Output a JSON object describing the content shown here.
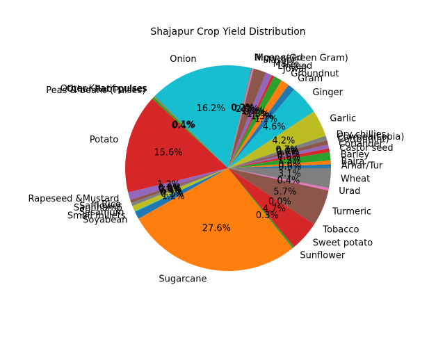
{
  "chart_data": {
    "type": "pie",
    "title": "Shajapur Crop Yield Distribution",
    "start_angle_deg": 0,
    "direction": "counterclockwise",
    "slices": [
      {
        "label": "Arhar/Tur",
        "value": 0.6,
        "pct_label": "0.6%",
        "color": "#1f77b4"
      },
      {
        "label": "Bajra",
        "value": 0.6,
        "pct_label": "0.6%",
        "color": "#ff7f0e"
      },
      {
        "label": "Barley",
        "value": 1.3,
        "pct_label": "1.3%",
        "color": "#2ca02c"
      },
      {
        "label": "Castor seed",
        "value": 0.6,
        "pct_label": "0.6%",
        "color": "#d62728"
      },
      {
        "label": "Coriander",
        "value": 0.6,
        "pct_label": "0.6%",
        "color": "#9467bd"
      },
      {
        "label": "Cotton(lint)",
        "value": 0.7,
        "pct_label": "0.7%",
        "color": "#8c564b"
      },
      {
        "label": "Cowpea(Lobia)",
        "value": 0.0,
        "pct_label": "0.0%",
        "color": "#e377c2"
      },
      {
        "label": "Dry chillies",
        "value": 0.7,
        "pct_label": "0.7%",
        "color": "#7f7f7f"
      },
      {
        "label": "Garlic",
        "value": 4.2,
        "pct_label": "4.2%",
        "color": "#bcbd22"
      },
      {
        "label": "Ginger",
        "value": 4.6,
        "pct_label": "4.6%",
        "color": "#17becf"
      },
      {
        "label": "Gram",
        "value": 1.1,
        "pct_label": "1.1%",
        "color": "#1f77b4"
      },
      {
        "label": "Groundnut",
        "value": 1.3,
        "pct_label": "1.3%",
        "color": "#ff7f0e"
      },
      {
        "label": "Jowar",
        "value": 1.3,
        "pct_label": "1.3%",
        "color": "#2ca02c"
      },
      {
        "label": "Linseed",
        "value": 0.4,
        "pct_label": "0.4%",
        "color": "#d62728"
      },
      {
        "label": "Maize",
        "value": 1.0,
        "pct_label": "1.0%",
        "color": "#9467bd"
      },
      {
        "label": "Masoor",
        "value": 2.0,
        "pct_label": "2.0%",
        "color": "#8c564b"
      },
      {
        "label": "Moong(Green Gram)",
        "value": 0.2,
        "pct_label": "0.2%",
        "color": "#e377c2"
      },
      {
        "label": "Niger seed",
        "value": 0.2,
        "pct_label": "0.2%",
        "color": "#7f7f7f"
      },
      {
        "label": "Onion",
        "value": 16.2,
        "pct_label": "16.2%",
        "color": "#17becf"
      },
      {
        "label": "Other Kharif pulses",
        "value": 0.1,
        "pct_label": "0.1%",
        "color": "#1f77b4"
      },
      {
        "label": "Other Rabi pulses",
        "value": 0.1,
        "pct_label": "0.1%",
        "color": "#ff7f0e"
      },
      {
        "label": "Peas & beans (Pulses)",
        "value": 0.4,
        "pct_label": "0.4%",
        "color": "#2ca02c"
      },
      {
        "label": "Potato",
        "value": 15.6,
        "pct_label": "15.6%",
        "color": "#d62728"
      },
      {
        "label": "Rapeseed &Mustard",
        "value": 1.2,
        "pct_label": "1.2%",
        "color": "#9467bd"
      },
      {
        "label": "Rice",
        "value": 0.5,
        "pct_label": "0.5%",
        "color": "#8c564b"
      },
      {
        "label": "Safflower",
        "value": 0.0,
        "pct_label": "0.0%",
        "color": "#e377c2"
      },
      {
        "label": "Sannhamp",
        "value": 0.5,
        "pct_label": "0.5%",
        "color": "#7f7f7f"
      },
      {
        "label": "Sesamum",
        "value": 0.9,
        "pct_label": "0.9%",
        "color": "#bcbd22"
      },
      {
        "label": "Small millets",
        "value": 0.1,
        "pct_label": "0.1%",
        "color": "#17becf"
      },
      {
        "label": "Soyabean",
        "value": 1.2,
        "pct_label": "1.2%",
        "color": "#1f77b4"
      },
      {
        "label": "Sugarcane",
        "value": 27.6,
        "pct_label": "27.6%",
        "color": "#ff7f0e"
      },
      {
        "label": "Sunflower",
        "value": 0.3,
        "pct_label": "0.3%",
        "color": "#2ca02c"
      },
      {
        "label": "Sweet potato",
        "value": 4.7,
        "pct_label": "4.7%",
        "color": "#d62728"
      },
      {
        "label": "Tobacco",
        "value": 0.0,
        "pct_label": "0.0%",
        "color": "#9467bd"
      },
      {
        "label": "Turmeric",
        "value": 5.7,
        "pct_label": "5.7%",
        "color": "#8c564b"
      },
      {
        "label": "Urad",
        "value": 0.4,
        "pct_label": "0.4%",
        "color": "#e377c2"
      },
      {
        "label": "Wheat",
        "value": 3.1,
        "pct_label": "3.1%",
        "color": "#7f7f7f"
      }
    ]
  }
}
